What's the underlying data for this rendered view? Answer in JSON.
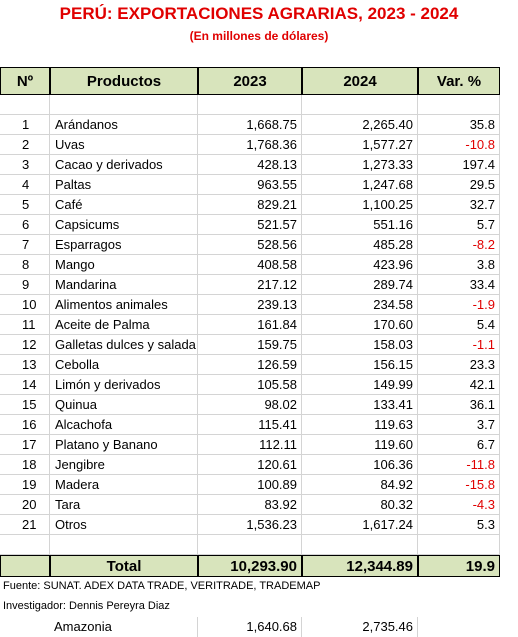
{
  "header": {
    "title": "PERÚ: EXPORTACIONES AGRARIAS, 2023 - 2024",
    "subtitle": "(En millones de dólares)"
  },
  "table": {
    "columns": [
      "Nº",
      "Productos",
      "2023",
      "2024",
      "Var. %"
    ],
    "rows": [
      [
        "1",
        "Arándanos",
        "1,668.75",
        "2,265.40",
        "35.8"
      ],
      [
        "2",
        "Uvas",
        "1,768.36",
        "1,577.27",
        "-10.8"
      ],
      [
        "3",
        "Cacao y derivados",
        "428.13",
        "1,273.33",
        "197.4"
      ],
      [
        "4",
        "Paltas",
        "963.55",
        "1,247.68",
        "29.5"
      ],
      [
        "5",
        "Café",
        "829.21",
        "1,100.25",
        "32.7"
      ],
      [
        "6",
        "Capsicums",
        "521.57",
        "551.16",
        "5.7"
      ],
      [
        "7",
        "Esparragos",
        "528.56",
        "485.28",
        "-8.2"
      ],
      [
        "8",
        "Mango",
        "408.58",
        "423.96",
        "3.8"
      ],
      [
        "9",
        "Mandarina",
        "217.12",
        "289.74",
        "33.4"
      ],
      [
        "10",
        "Alimentos animales",
        "239.13",
        "234.58",
        "-1.9"
      ],
      [
        "11",
        "Aceite de Palma",
        "161.84",
        "170.60",
        "5.4"
      ],
      [
        "12",
        "Galletas dulces y salada",
        "159.75",
        "158.03",
        "-1.1"
      ],
      [
        "13",
        "Cebolla",
        "126.59",
        "156.15",
        "23.3"
      ],
      [
        "14",
        "Limón y derivados",
        "105.58",
        "149.99",
        "42.1"
      ],
      [
        "15",
        "Quinua",
        "98.02",
        "133.41",
        "36.1"
      ],
      [
        "16",
        "Alcachofa",
        "115.41",
        "119.63",
        "3.7"
      ],
      [
        "17",
        "Platano y Banano",
        "112.11",
        "119.60",
        "6.7"
      ],
      [
        "18",
        "Jengibre",
        "120.61",
        "106.36",
        "-11.8"
      ],
      [
        "19",
        "Madera",
        "100.89",
        "84.92",
        "-15.8"
      ],
      [
        "20",
        "Tara",
        "83.92",
        "80.32",
        "-4.3"
      ],
      [
        "21",
        "Otros",
        "1,536.23",
        "1,617.24",
        "5.3"
      ]
    ],
    "total": [
      "Total",
      "10,293.90",
      "12,344.89",
      "19.9"
    ],
    "negative_color": "#e00000"
  },
  "footer": {
    "source": "Fuente: SUNAT. ADEX DATA TRADE, VERITRADE, TRADEMAP",
    "researcher": "Investigador: Dennis Pereyra Diaz",
    "extra_row": [
      "Amazonia",
      "1,640.68",
      "2,735.46"
    ]
  }
}
